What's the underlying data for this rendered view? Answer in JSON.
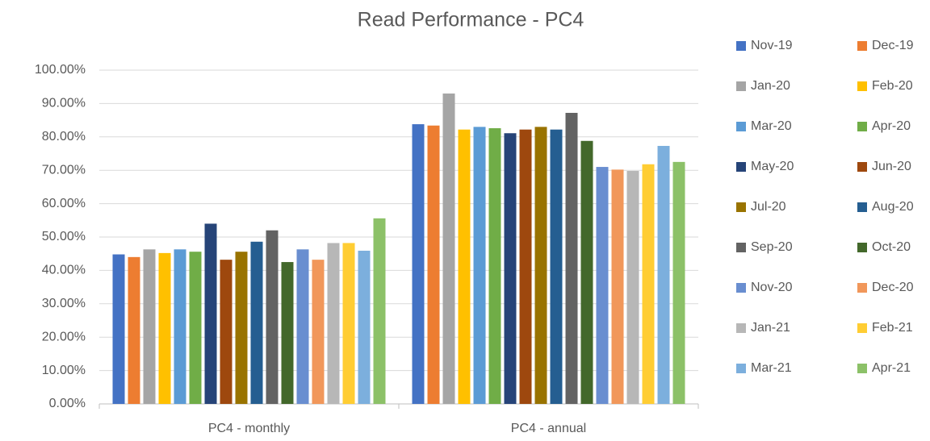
{
  "chart_data": {
    "type": "bar",
    "title": "Read Performance  - PC4",
    "categories": [
      "PC4 - monthly",
      "PC4 - annual"
    ],
    "series": [
      {
        "name": "Nov-19",
        "color": "#4472c4",
        "values": [
          44.8,
          83.8
        ]
      },
      {
        "name": "Dec-19",
        "color": "#ed7d31",
        "values": [
          44.0,
          83.4
        ]
      },
      {
        "name": "Jan-20",
        "color": "#a5a5a5",
        "values": [
          46.3,
          93.0
        ]
      },
      {
        "name": "Feb-20",
        "color": "#ffc000",
        "values": [
          45.2,
          82.2
        ]
      },
      {
        "name": "Mar-20",
        "color": "#5b9bd5",
        "values": [
          46.3,
          83.0
        ]
      },
      {
        "name": "Apr-20",
        "color": "#70ad47",
        "values": [
          45.6,
          82.6
        ]
      },
      {
        "name": "May-20",
        "color": "#264478",
        "values": [
          54.0,
          81.1
        ]
      },
      {
        "name": "Jun-20",
        "color": "#9e480e",
        "values": [
          43.2,
          82.2
        ]
      },
      {
        "name": "Jul-20",
        "color": "#997300",
        "values": [
          45.6,
          83.0
        ]
      },
      {
        "name": "Aug-20",
        "color": "#255e91",
        "values": [
          48.6,
          82.2
        ]
      },
      {
        "name": "Sep-20",
        "color": "#636363",
        "values": [
          52.0,
          87.2
        ]
      },
      {
        "name": "Oct-20",
        "color": "#43682b",
        "values": [
          42.5,
          78.8
        ]
      },
      {
        "name": "Nov-20",
        "color": "#698ed0",
        "values": [
          46.3,
          71.0
        ]
      },
      {
        "name": "Dec-20",
        "color": "#f1975a",
        "values": [
          43.2,
          70.2
        ]
      },
      {
        "name": "Jan-21",
        "color": "#b7b7b7",
        "values": [
          48.2,
          69.8
        ]
      },
      {
        "name": "Feb-21",
        "color": "#ffcd33",
        "values": [
          48.2,
          71.8
        ]
      },
      {
        "name": "Mar-21",
        "color": "#7cafdd",
        "values": [
          45.9,
          77.3
        ]
      },
      {
        "name": "Apr-21",
        "color": "#8cc168",
        "values": [
          55.6,
          72.5
        ]
      }
    ],
    "ylim": [
      0,
      100
    ],
    "yticks": [
      {
        "value": 0,
        "label": "0.00%"
      },
      {
        "value": 10,
        "label": "10.00%"
      },
      {
        "value": 20,
        "label": "20.00%"
      },
      {
        "value": 30,
        "label": "30.00%"
      },
      {
        "value": 40,
        "label": "40.00%"
      },
      {
        "value": 50,
        "label": "50.00%"
      },
      {
        "value": 60,
        "label": "60.00%"
      },
      {
        "value": 70,
        "label": "70.00%"
      },
      {
        "value": 80,
        "label": "80.00%"
      },
      {
        "value": 90,
        "label": "90.00%"
      },
      {
        "value": 100,
        "label": "100.00%"
      }
    ],
    "grid": true,
    "legend": "right"
  }
}
